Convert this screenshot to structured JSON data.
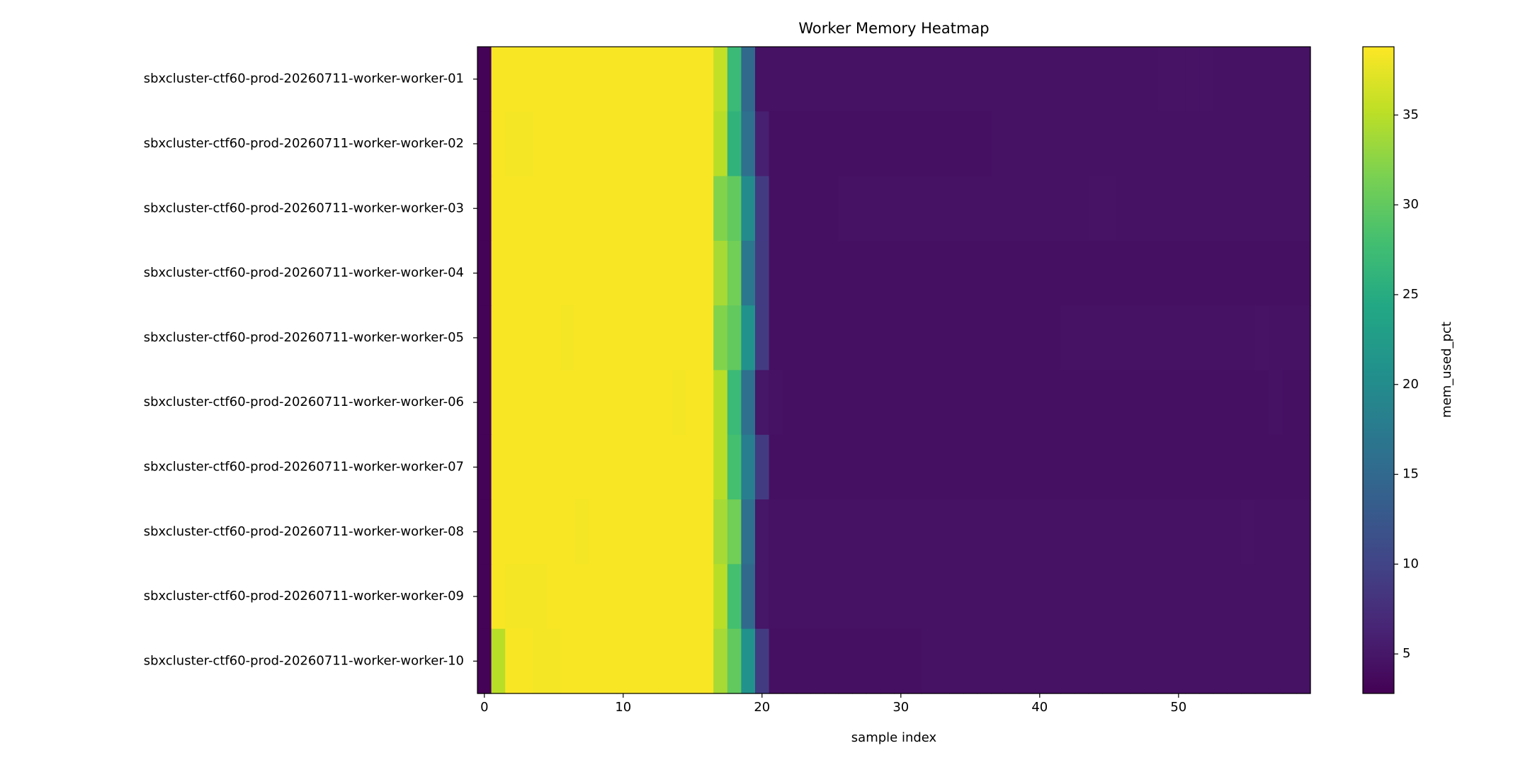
{
  "chart_data": {
    "type": "heatmap",
    "title": "Worker Memory Heatmap",
    "xlabel": "sample index",
    "colorbar_label": "mem_used_pct",
    "colormap": "viridis",
    "categories": [
      "sbxcluster-ctf60-prod-20260711-worker-worker-01",
      "sbxcluster-ctf60-prod-20260711-worker-worker-02",
      "sbxcluster-ctf60-prod-20260711-worker-worker-03",
      "sbxcluster-ctf60-prod-20260711-worker-worker-04",
      "sbxcluster-ctf60-prod-20260711-worker-worker-05",
      "sbxcluster-ctf60-prod-20260711-worker-worker-06",
      "sbxcluster-ctf60-prod-20260711-worker-worker-07",
      "sbxcluster-ctf60-prod-20260711-worker-worker-08",
      "sbxcluster-ctf60-prod-20260711-worker-worker-09",
      "sbxcluster-ctf60-prod-20260711-worker-worker-10"
    ],
    "xlim": [
      -0.5,
      59.5
    ],
    "xticks": [
      0,
      10,
      20,
      30,
      40,
      50
    ],
    "clim": [
      2.8,
      38.8
    ],
    "cticks": [
      5,
      10,
      15,
      20,
      25,
      30,
      35
    ],
    "values": [
      [
        3.0,
        38.5,
        38.5,
        38.5,
        38.5,
        38.5,
        38.5,
        38.5,
        38.5,
        38.5,
        38.5,
        38.5,
        38.5,
        38.5,
        38.5,
        38.5,
        38.5,
        35.5,
        27,
        15,
        4.5,
        4.5,
        4.5,
        4.5,
        4.5,
        4.5,
        4.5,
        4.5,
        4.5,
        4.5,
        4.5,
        4.5,
        4.5,
        4.5,
        4.5,
        4.5,
        4.5,
        4.5,
        4.5,
        4.5,
        4.5,
        4.5,
        4.5,
        4.5,
        4.5,
        4.5,
        4.5,
        4.5,
        4.5,
        4.7,
        4.7,
        4.7,
        4.7,
        4.5,
        4.5,
        4.5,
        4.5,
        4.5,
        4.5,
        4.5
      ],
      [
        3.0,
        38.5,
        38.3,
        38.3,
        38.5,
        38.5,
        38.5,
        38.5,
        38.5,
        38.5,
        38.5,
        38.5,
        38.5,
        38.5,
        38.5,
        38.5,
        38.5,
        35,
        26,
        16,
        6,
        4.3,
        4.3,
        4.3,
        4.3,
        4.3,
        4.3,
        4.3,
        4.3,
        4.3,
        4.3,
        4.3,
        4.3,
        4.3,
        4.3,
        4.3,
        4.3,
        4.5,
        4.5,
        4.5,
        4.5,
        4.5,
        4.5,
        4.5,
        4.5,
        4.5,
        4.5,
        4.5,
        4.5,
        4.5,
        4.5,
        4.5,
        4.5,
        4.5,
        4.5,
        4.5,
        4.5,
        4.5,
        4.5,
        4.5
      ],
      [
        3.0,
        38.5,
        38.5,
        38.5,
        38.5,
        38.5,
        38.5,
        38.5,
        38.5,
        38.5,
        38.5,
        38.5,
        38.5,
        38.5,
        38.5,
        38.5,
        38.5,
        32,
        30,
        20,
        9,
        4.3,
        4.3,
        4.3,
        4.3,
        4.3,
        4.5,
        4.5,
        4.5,
        4.5,
        4.5,
        4.5,
        4.5,
        4.5,
        4.5,
        4.5,
        4.5,
        4.5,
        4.5,
        4.5,
        4.5,
        4.5,
        4.5,
        4.5,
        4.7,
        4.7,
        4.5,
        4.5,
        4.5,
        4.5,
        4.5,
        4.5,
        4.5,
        4.5,
        4.5,
        4.5,
        4.5,
        4.5,
        4.5,
        4.5
      ],
      [
        3.0,
        38.5,
        38.5,
        38.5,
        38.5,
        38.5,
        38.5,
        38.5,
        38.5,
        38.5,
        38.5,
        38.5,
        38.5,
        38.5,
        38.5,
        38.5,
        38.5,
        34,
        31,
        17,
        9,
        4.3,
        4.3,
        4.3,
        4.3,
        4.3,
        4.3,
        4.3,
        4.3,
        4.3,
        4.3,
        4.3,
        4.3,
        4.3,
        4.3,
        4.3,
        4.3,
        4.3,
        4.3,
        4.3,
        4.3,
        4.3,
        4.3,
        4.3,
        4.3,
        4.3,
        4.3,
        4.3,
        4.3,
        4.3,
        4.3,
        4.3,
        4.3,
        4.3,
        4.3,
        4.3,
        4.3,
        4.3,
        4.3,
        4.3
      ],
      [
        3.0,
        38.5,
        38.5,
        38.5,
        38.5,
        38.5,
        38.3,
        38.5,
        38.5,
        38.5,
        38.5,
        38.5,
        38.5,
        38.5,
        38.5,
        38.5,
        38.5,
        32,
        30,
        21,
        9,
        4.3,
        4.3,
        4.3,
        4.3,
        4.3,
        4.3,
        4.3,
        4.3,
        4.3,
        4.3,
        4.3,
        4.3,
        4.3,
        4.3,
        4.3,
        4.3,
        4.3,
        4.3,
        4.3,
        4.3,
        4.3,
        4.5,
        4.5,
        4.5,
        4.5,
        4.5,
        4.5,
        4.5,
        4.5,
        4.5,
        4.5,
        4.5,
        4.5,
        4.5,
        4.5,
        4.7,
        4.5,
        4.5,
        4.5
      ],
      [
        3.0,
        38.5,
        38.5,
        38.5,
        38.5,
        38.5,
        38.5,
        38.5,
        38.5,
        38.5,
        38.5,
        38.5,
        38.5,
        38.5,
        38.3,
        38.5,
        38.5,
        35,
        27,
        16,
        5,
        4.5,
        4.3,
        4.3,
        4.3,
        4.3,
        4.3,
        4.3,
        4.3,
        4.3,
        4.3,
        4.3,
        4.3,
        4.3,
        4.3,
        4.3,
        4.3,
        4.3,
        4.3,
        4.3,
        4.3,
        4.3,
        4.3,
        4.3,
        4.3,
        4.3,
        4.3,
        4.3,
        4.3,
        4.3,
        4.3,
        4.3,
        4.3,
        4.3,
        4.3,
        4.3,
        4.3,
        4.5,
        4.3,
        4.3
      ],
      [
        3.0,
        38.5,
        38.5,
        38.5,
        38.5,
        38.5,
        38.5,
        38.5,
        38.5,
        38.5,
        38.5,
        38.5,
        38.5,
        38.5,
        38.5,
        38.5,
        38.5,
        35,
        28,
        18,
        9,
        4.3,
        4.3,
        4.3,
        4.3,
        4.3,
        4.3,
        4.3,
        4.3,
        4.3,
        4.3,
        4.3,
        4.3,
        4.3,
        4.3,
        4.3,
        4.3,
        4.3,
        4.3,
        4.3,
        4.3,
        4.3,
        4.3,
        4.3,
        4.3,
        4.3,
        4.3,
        4.3,
        4.3,
        4.3,
        4.3,
        4.3,
        4.3,
        4.3,
        4.3,
        4.3,
        4.3,
        4.3,
        4.3,
        4.3
      ],
      [
        3.0,
        38.5,
        38.5,
        38.5,
        38.5,
        38.5,
        38.5,
        38.3,
        38.5,
        38.5,
        38.5,
        38.5,
        38.5,
        38.5,
        38.5,
        38.5,
        38.5,
        34,
        31,
        16,
        5,
        4.5,
        4.5,
        4.5,
        4.5,
        4.5,
        4.5,
        4.5,
        4.5,
        4.5,
        4.5,
        4.5,
        4.5,
        4.5,
        4.5,
        4.5,
        4.5,
        4.5,
        4.5,
        4.5,
        4.5,
        4.5,
        4.5,
        4.5,
        4.5,
        4.5,
        4.5,
        4.5,
        4.5,
        4.5,
        4.5,
        4.5,
        4.5,
        4.5,
        4.5,
        4.7,
        4.5,
        4.5,
        4.5,
        4.5
      ],
      [
        3.0,
        38.5,
        38.3,
        38.3,
        38.3,
        38.5,
        38.5,
        38.5,
        38.5,
        38.5,
        38.5,
        38.5,
        38.5,
        38.5,
        38.5,
        38.5,
        38.5,
        35,
        28,
        15,
        5,
        4.5,
        4.5,
        4.5,
        4.5,
        4.5,
        4.5,
        4.5,
        4.5,
        4.5,
        4.5,
        4.5,
        4.5,
        4.5,
        4.5,
        4.5,
        4.5,
        4.5,
        4.5,
        4.5,
        4.5,
        4.5,
        4.5,
        4.5,
        4.5,
        4.5,
        4.5,
        4.5,
        4.5,
        4.5,
        4.5,
        4.5,
        4.5,
        4.5,
        4.5,
        4.5,
        4.5,
        4.5,
        4.5,
        4.5
      ],
      [
        3.0,
        35,
        38.5,
        38.5,
        38.3,
        38.3,
        38.5,
        38.5,
        38.5,
        38.5,
        38.5,
        38.5,
        38.5,
        38.5,
        38.5,
        38.5,
        38.5,
        34,
        30,
        21,
        9,
        4.3,
        4.3,
        4.3,
        4.3,
        4.3,
        4.3,
        4.3,
        4.3,
        4.3,
        4.3,
        4.3,
        4.5,
        4.5,
        4.5,
        4.5,
        4.5,
        4.5,
        4.5,
        4.5,
        4.5,
        4.5,
        4.5,
        4.5,
        4.5,
        4.5,
        4.5,
        4.5,
        4.5,
        4.5,
        4.5,
        4.5,
        4.5,
        4.5,
        4.5,
        4.5,
        4.5,
        4.5,
        4.5,
        4.5
      ]
    ]
  }
}
